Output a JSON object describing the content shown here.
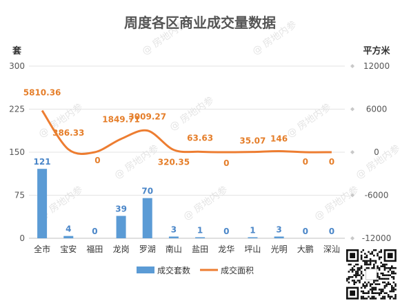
{
  "chart_data": {
    "type": "bar",
    "title": "周度各区商业成交量数据",
    "categories": [
      "全市",
      "宝安",
      "福田",
      "龙岗",
      "罗湖",
      "南山",
      "盐田",
      "龙华",
      "坪山",
      "光明",
      "大鹏",
      "深汕"
    ],
    "y_left_unit": "套",
    "y_right_unit": "平方米",
    "y_left_ticks": [
      "300",
      "225",
      "150",
      "75",
      "0"
    ],
    "y_right_ticks": [
      "12000",
      "6000",
      "0",
      "-6000",
      "-12000"
    ],
    "ylim_left": [
      0,
      300
    ],
    "ylim_right": [
      -12000,
      12000
    ],
    "grid": true,
    "legend_position": "bottom",
    "series": [
      {
        "name": "成交套数",
        "type": "bar",
        "axis": "left",
        "color": "#5b9bd5",
        "values": [
          121,
          4,
          0,
          39,
          70,
          3,
          1,
          0,
          1,
          3,
          0,
          0
        ],
        "labels": [
          "121",
          "4",
          "0",
          "39",
          "70",
          "3",
          "1",
          "0",
          "1",
          "3",
          "0",
          "0"
        ]
      },
      {
        "name": "成交面积",
        "type": "line",
        "axis": "right",
        "color": "#ed7d31",
        "values": [
          5810.36,
          386.33,
          0,
          1849.71,
          3009.27,
          320.35,
          63.63,
          0,
          35.07,
          146,
          0,
          0
        ],
        "labels": [
          "5810.36",
          "386.33",
          "0",
          "1849.71",
          "3009.27",
          "320.35",
          "63.63",
          "0",
          "35.07",
          "146",
          "0",
          "0"
        ]
      }
    ]
  },
  "watermark": "@ 房地内参",
  "qr_icon": "qr-code-icon"
}
